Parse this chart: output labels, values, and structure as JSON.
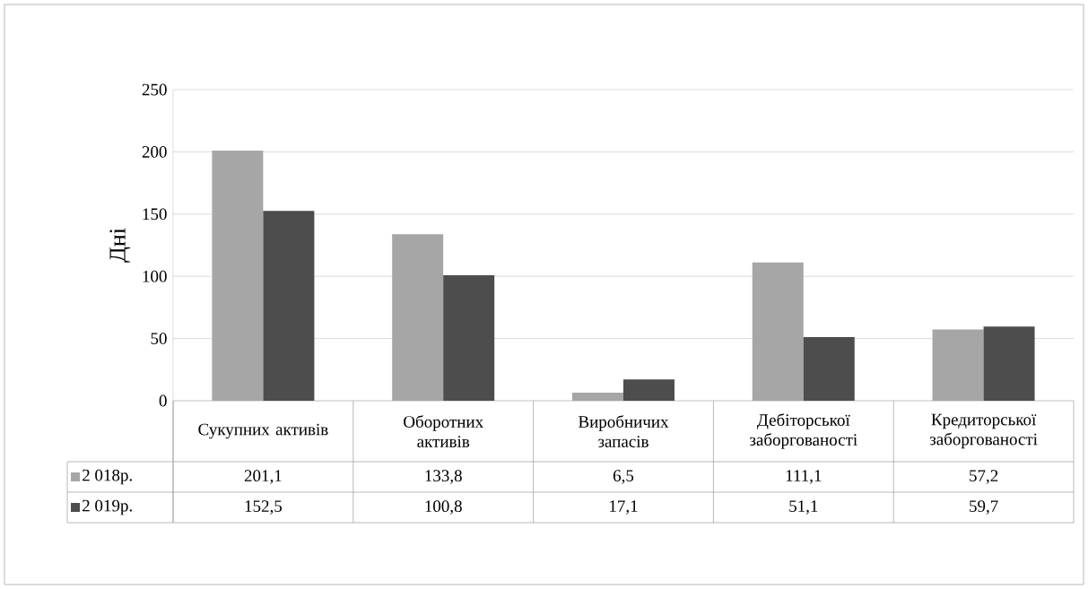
{
  "chart_data": {
    "type": "bar",
    "ylabel": "Дні",
    "categories": [
      "Сукупних активів",
      "Оборотних активів",
      "Виробничих запасів",
      "Дебіторської заборгованості",
      "Кредиторської заборгованості"
    ],
    "series": [
      {
        "name": "2 018р.",
        "color": "#a6a6a6",
        "values": [
          201.1,
          133.8,
          6.5,
          111.1,
          57.2
        ],
        "value_labels": [
          "201,1",
          "133,8",
          "6,5",
          "111,1",
          "57,2"
        ]
      },
      {
        "name": "2 019р.",
        "color": "#4d4d4d",
        "values": [
          152.5,
          100.8,
          17.1,
          51.1,
          59.7
        ],
        "value_labels": [
          "152,5",
          "100,8",
          "17,1",
          "51,1",
          "59,7"
        ]
      }
    ],
    "ylim": [
      0,
      250
    ],
    "yticks": [
      0,
      50,
      100,
      150,
      200,
      250
    ],
    "grid": "y",
    "legend": "bottom",
    "tick_labels": "y"
  }
}
